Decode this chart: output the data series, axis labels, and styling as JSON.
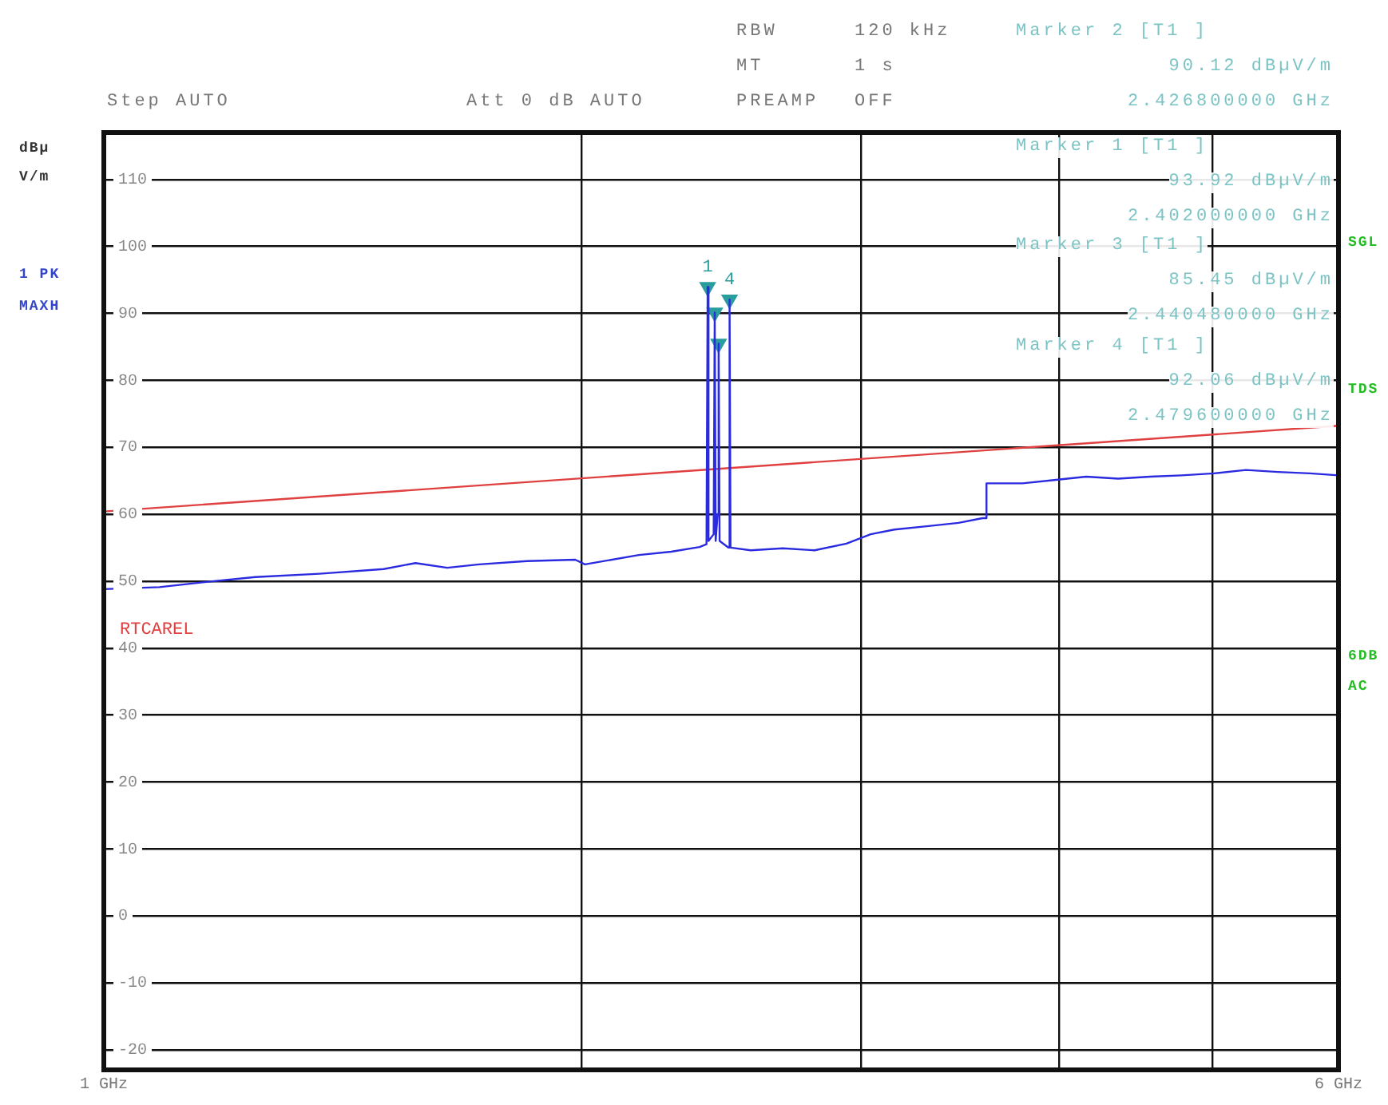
{
  "chart_data": {
    "type": "line",
    "ylabel": "dBµV/m",
    "log": "x",
    "grid": true,
    "marker": "none",
    "xlim": [
      1,
      6
    ],
    "xticks": [
      {
        "value": 1,
        "label": "1 GHz"
      },
      {
        "value": 2,
        "label": null
      },
      {
        "value": 3,
        "label": null
      },
      {
        "value": 4,
        "label": null
      },
      {
        "value": 5,
        "label": null
      },
      {
        "value": 6,
        "label": "6 GHz"
      }
    ],
    "ylim": [
      -23,
      117
    ],
    "yticks": [
      -20,
      -10,
      0,
      10,
      20,
      30,
      40,
      50,
      60,
      70,
      80,
      90,
      100,
      110
    ],
    "series": [
      {
        "color": "#2a2ae0",
        "x": [
          1.0,
          1.084,
          1.163,
          1.246,
          1.367,
          1.501,
          1.572,
          1.646,
          1.724,
          1.848,
          1.982,
          2.01,
          2.174,
          2.278,
          2.374,
          2.398,
          2.402,
          2.405,
          2.423,
          2.4268,
          2.43,
          2.437,
          2.44048,
          2.444,
          2.476,
          2.4796,
          2.483,
          2.557,
          2.679,
          2.805,
          2.938,
          3.043,
          3.15,
          3.301,
          3.457,
          3.579,
          3.595,
          3.6,
          3.793,
          3.972,
          4.16,
          4.358,
          4.565,
          4.78,
          5.008,
          5.246,
          5.495,
          5.756,
          6.0
        ],
        "values": [
          48.8,
          49.1,
          49.9,
          50.6,
          51.1,
          51.8,
          52.7,
          52.0,
          52.5,
          53.0,
          53.2,
          52.5,
          53.9,
          54.4,
          55.1,
          55.5,
          93.92,
          56,
          57,
          90.12,
          56,
          60,
          85.45,
          56,
          55,
          92.06,
          55,
          54.6,
          54.9,
          54.6,
          55.6,
          57,
          57.7,
          58.2,
          58.7,
          59.4,
          59.4,
          64.6,
          64.6,
          65.1,
          65.6,
          65.3,
          65.6,
          65.8,
          66.1,
          66.6,
          66.3,
          66.1,
          65.8
        ]
      },
      {
        "name": "RTCAREL",
        "color": "#e04040",
        "x": [
          1,
          6
        ],
        "values": [
          60.4,
          73.2
        ]
      },
      {
        "type": "scatter",
        "marker": "triangle",
        "color": "#2a9d9d",
        "x": [
          2.402,
          2.4268,
          2.44048,
          2.4796
        ],
        "values": [
          93.92,
          90.12,
          85.45,
          92.06
        ]
      }
    ],
    "annotations": [
      "Step AUTO",
      "Att 0 dB AUTO",
      "RBW",
      "120 kHz",
      "MT",
      "1 s",
      "PREAMP",
      "OFF",
      "Marker 2 [T1 ]",
      "90.12 dBµV/m",
      "2.426800000 GHz",
      "Marker 1 [T1 ]",
      "93.92 dBµV/m",
      "2.402000000 GHz",
      "Marker 3 [T1 ]",
      "85.45 dBµV/m",
      "2.440480000 GHz",
      "Marker 4 [T1 ]",
      "92.06 dBµV/m",
      "2.479600000 GHz",
      "1 PK",
      "MAXH",
      "SGL",
      "TDS",
      "6DB",
      "AC",
      {
        "text": "1",
        "x": 2.402,
        "y": 93.92
      },
      {
        "text": "4",
        "x": 2.4796,
        "y": 92.06
      }
    ]
  }
}
